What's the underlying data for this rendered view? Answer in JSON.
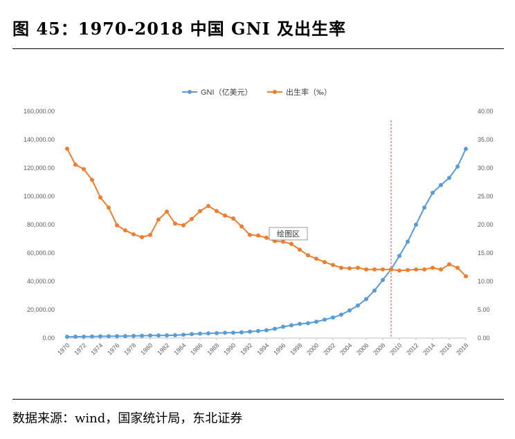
{
  "figure": {
    "title": "图 45：1970-2018 中国 GNI 及出生率",
    "source": "数据来源：wind，国家统计局，东北证券"
  },
  "tooltip": {
    "label": "绘图区"
  },
  "chart_data": {
    "type": "line",
    "title": "",
    "xlabel": "",
    "ylabel": "",
    "x": [
      1970,
      1971,
      1972,
      1973,
      1974,
      1975,
      1976,
      1977,
      1978,
      1979,
      1980,
      1981,
      1982,
      1983,
      1984,
      1985,
      1986,
      1987,
      1988,
      1989,
      1990,
      1991,
      1992,
      1993,
      1994,
      1995,
      1996,
      1997,
      1998,
      1999,
      2000,
      2001,
      2002,
      2003,
      2004,
      2005,
      2006,
      2007,
      2008,
      2009,
      2010,
      2011,
      2012,
      2013,
      2014,
      2015,
      2016,
      2017,
      2018
    ],
    "x_tick_labels": [
      "1970",
      "1972",
      "1974",
      "1976",
      "1978",
      "1980",
      "1982",
      "1984",
      "1986",
      "1988",
      "1990",
      "1992",
      "1994",
      "1996",
      "1998",
      "2000",
      "2002",
      "2004",
      "2006",
      "2008",
      "2010",
      "2012",
      "2014",
      "2016",
      "2018"
    ],
    "y_left_ticks": [
      "0.00",
      "20,000.00",
      "40,000.00",
      "60,000.00",
      "80,000.00",
      "100,000.00",
      "120,000.00",
      "140,000.00",
      "160,000.00"
    ],
    "y_right_ticks": [
      "0.00",
      "5.00",
      "10.00",
      "15.00",
      "20.00",
      "25.00",
      "30.00",
      "35.00",
      "40.00"
    ],
    "ylim_left": [
      0,
      160000
    ],
    "ylim_right": [
      0,
      40
    ],
    "legend_position": "top-center",
    "grid": false,
    "reference_line": {
      "x": 2009,
      "style": "dashed",
      "color": "#e06666"
    },
    "series": [
      {
        "name": "GNI（亿美元）",
        "axis": "left",
        "color": "#5b9bd5",
        "values": [
          900,
          950,
          1000,
          1100,
          1200,
          1300,
          1350,
          1400,
          1500,
          1650,
          1800,
          1850,
          1900,
          2000,
          2300,
          2800,
          3100,
          3300,
          3500,
          3700,
          3800,
          4000,
          4500,
          5000,
          5500,
          6500,
          8000,
          9000,
          10000,
          10500,
          11500,
          13000,
          14500,
          16500,
          19500,
          23000,
          27500,
          33500,
          41000,
          48500,
          58000,
          68000,
          80000,
          92000,
          102500,
          108000,
          113000,
          121000,
          133500
        ]
      },
      {
        "name": "出生率（‰）",
        "axis": "right",
        "color": "#ed7d31",
        "values": [
          33.4,
          30.6,
          29.8,
          27.9,
          24.8,
          23.0,
          19.9,
          19.0,
          18.3,
          17.8,
          18.2,
          20.9,
          22.3,
          20.2,
          19.9,
          21.0,
          22.4,
          23.3,
          22.4,
          21.6,
          21.1,
          19.7,
          18.2,
          18.1,
          17.7,
          17.1,
          17.0,
          16.6,
          15.6,
          14.6,
          14.0,
          13.4,
          12.9,
          12.4,
          12.3,
          12.4,
          12.1,
          12.1,
          12.1,
          12.1,
          11.9,
          12.0,
          12.1,
          12.1,
          12.4,
          12.1,
          13.0,
          12.4,
          10.9
        ]
      }
    ]
  }
}
